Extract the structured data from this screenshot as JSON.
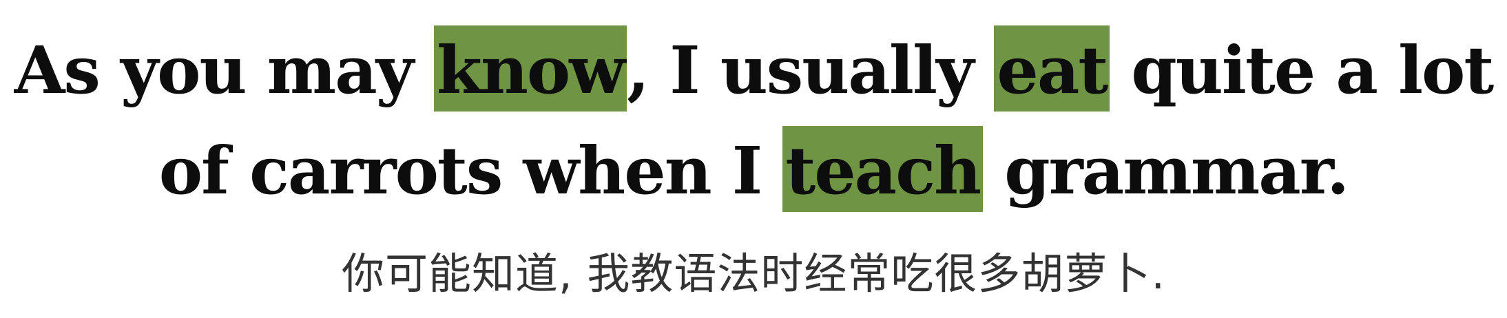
{
  "sentence": {
    "line1": {
      "seg1": "As you may ",
      "hl1": "know",
      "seg2": ", I usually ",
      "hl2": "eat",
      "seg3": " quite a lot"
    },
    "line2": {
      "seg1": "of carrots when I ",
      "hl1": "teach",
      "seg2": " grammar."
    }
  },
  "translation": "你可能知道, 我教语法时经常吃很多胡萝卜.",
  "colors": {
    "highlight": "#6f9443",
    "text": "#0d0d0d",
    "translation_text": "#333333",
    "background": "#ffffff"
  }
}
